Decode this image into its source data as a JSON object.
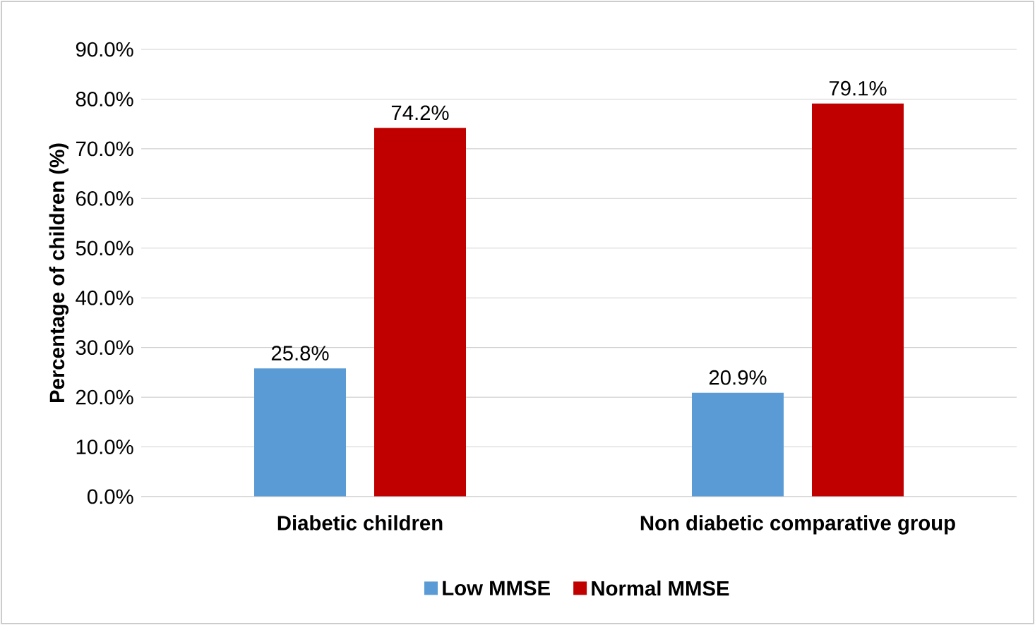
{
  "chart_data": {
    "type": "bar",
    "ylabel": "Percentage of children (%)",
    "categories": [
      "Diabetic children",
      "Non diabetic comparative group"
    ],
    "series": [
      {
        "name": "Low MMSE",
        "color": "#5b9bd5",
        "values": [
          25.8,
          20.9
        ],
        "value_labels": [
          "25.8%",
          "20.9%"
        ]
      },
      {
        "name": "Normal MMSE",
        "color": "#c00000",
        "values": [
          74.2,
          79.1
        ],
        "value_labels": [
          "74.2%",
          "79.1%"
        ]
      }
    ],
    "ylim": [
      0,
      90
    ],
    "yticks": [
      {
        "value": 0,
        "label": "0.0%"
      },
      {
        "value": 10,
        "label": "10.0%"
      },
      {
        "value": 20,
        "label": "20.0%"
      },
      {
        "value": 30,
        "label": "30.0%"
      },
      {
        "value": 40,
        "label": "40.0%"
      },
      {
        "value": 50,
        "label": "50.0%"
      },
      {
        "value": 60,
        "label": "60.0%"
      },
      {
        "value": 70,
        "label": "70.0%"
      },
      {
        "value": 80,
        "label": "80.0%"
      },
      {
        "value": 90,
        "label": "90.0%"
      }
    ],
    "grid": "y",
    "legend": "bottom"
  }
}
